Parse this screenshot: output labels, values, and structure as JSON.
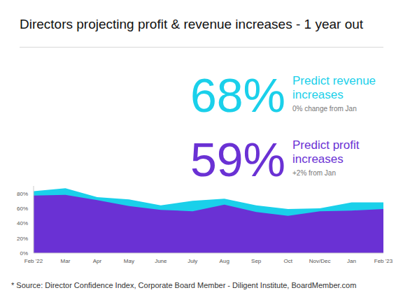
{
  "chart_data": {
    "type": "area",
    "title": "Directors projecting profit & revenue increases - 1 year out",
    "annotations": [
      {
        "text": "68%",
        "label": "Predict revenue increases",
        "note": "0% change from Jan"
      },
      {
        "text": "59%",
        "label": "Predict profit increases",
        "note": "+2% from Jan"
      }
    ],
    "source": "* Source: Director Confidence Index, Corporate Board Member - Diligent Institute, BoardMember.com",
    "categories": [
      "Feb '22",
      "Mar",
      "Apr",
      "May",
      "June",
      "July",
      "Aug",
      "Sep",
      "Oct",
      "Nov/Dec",
      "Jan",
      "Feb '23"
    ],
    "series": [
      {
        "name": "Predict revenue increases",
        "color": "#1ad0ea",
        "values": [
          83,
          87,
          75,
          72,
          64,
          70,
          73,
          64,
          59,
          60,
          68,
          68
        ]
      },
      {
        "name": "Predict profit increases",
        "color": "#6a31d4",
        "values": [
          77,
          78,
          71,
          63,
          58,
          56,
          65,
          55,
          50,
          56,
          57,
          59
        ]
      }
    ],
    "ylim": [
      0,
      90
    ],
    "yticks": [
      {
        "value": 0,
        "label": "0%"
      },
      {
        "value": 20,
        "label": "20%"
      },
      {
        "value": 40,
        "label": "40%"
      },
      {
        "value": 60,
        "label": "60%"
      },
      {
        "value": 80,
        "label": "80%"
      }
    ],
    "grid": false,
    "stacked": false
  }
}
